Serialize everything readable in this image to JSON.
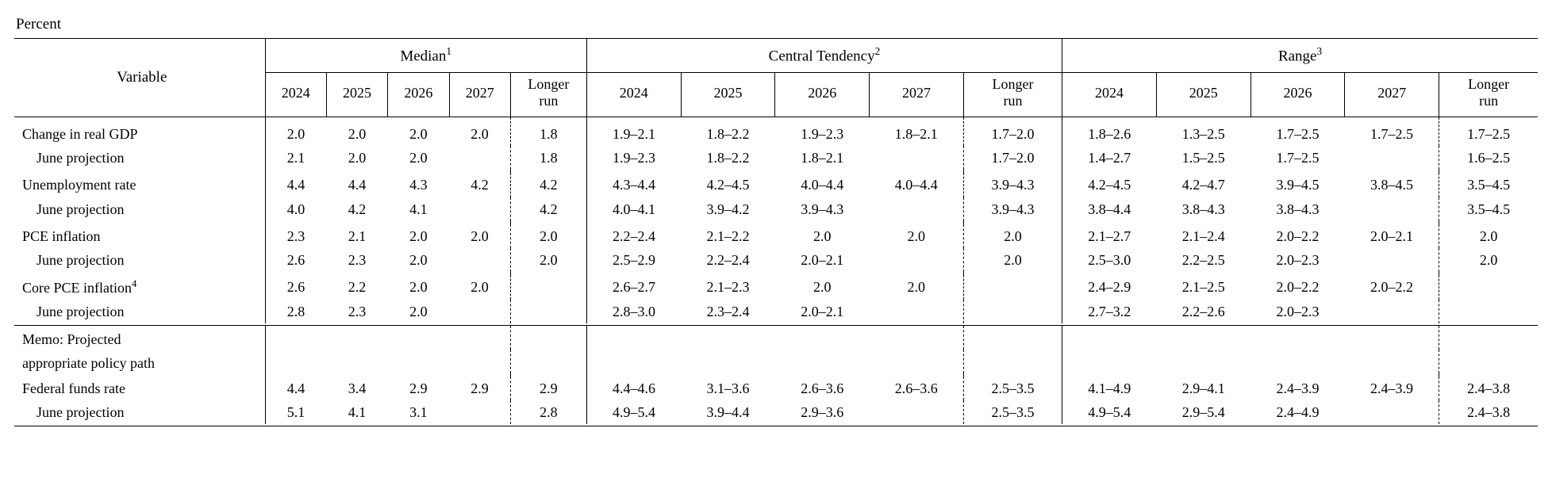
{
  "caption": "Percent",
  "header": {
    "variable": "Variable",
    "groups": [
      {
        "label": "Median",
        "sup": "1"
      },
      {
        "label": "Central Tendency",
        "sup": "2"
      },
      {
        "label": "Range",
        "sup": "3"
      }
    ],
    "years": [
      "2024",
      "2025",
      "2026",
      "2027"
    ],
    "longer_run": "Longer run"
  },
  "rows": {
    "gdp": {
      "label": "Change in real GDP",
      "median": [
        "2.0",
        "2.0",
        "2.0",
        "2.0",
        "1.8"
      ],
      "ct": [
        "1.9–2.1",
        "1.8–2.2",
        "1.9–2.3",
        "1.8–2.1",
        "1.7–2.0"
      ],
      "range": [
        "1.8–2.6",
        "1.3–2.5",
        "1.7–2.5",
        "1.7–2.5",
        "1.7–2.5"
      ]
    },
    "gdp_june": {
      "label": "June projection",
      "median": [
        "2.1",
        "2.0",
        "2.0",
        "",
        "1.8"
      ],
      "ct": [
        "1.9–2.3",
        "1.8–2.2",
        "1.8–2.1",
        "",
        "1.7–2.0"
      ],
      "range": [
        "1.4–2.7",
        "1.5–2.5",
        "1.7–2.5",
        "",
        "1.6–2.5"
      ]
    },
    "unemp": {
      "label": "Unemployment rate",
      "median": [
        "4.4",
        "4.4",
        "4.3",
        "4.2",
        "4.2"
      ],
      "ct": [
        "4.3–4.4",
        "4.2–4.5",
        "4.0–4.4",
        "4.0–4.4",
        "3.9–4.3"
      ],
      "range": [
        "4.2–4.5",
        "4.2–4.7",
        "3.9–4.5",
        "3.8–4.5",
        "3.5–4.5"
      ]
    },
    "unemp_june": {
      "label": "June projection",
      "median": [
        "4.0",
        "4.2",
        "4.1",
        "",
        "4.2"
      ],
      "ct": [
        "4.0–4.1",
        "3.9–4.2",
        "3.9–4.3",
        "",
        "3.9–4.3"
      ],
      "range": [
        "3.8–4.4",
        "3.8–4.3",
        "3.8–4.3",
        "",
        "3.5–4.5"
      ]
    },
    "pce": {
      "label": "PCE inflation",
      "median": [
        "2.3",
        "2.1",
        "2.0",
        "2.0",
        "2.0"
      ],
      "ct": [
        "2.2–2.4",
        "2.1–2.2",
        "2.0",
        "2.0",
        "2.0"
      ],
      "range": [
        "2.1–2.7",
        "2.1–2.4",
        "2.0–2.2",
        "2.0–2.1",
        "2.0"
      ]
    },
    "pce_june": {
      "label": "June projection",
      "median": [
        "2.6",
        "2.3",
        "2.0",
        "",
        "2.0"
      ],
      "ct": [
        "2.5–2.9",
        "2.2–2.4",
        "2.0–2.1",
        "",
        "2.0"
      ],
      "range": [
        "2.5–3.0",
        "2.2–2.5",
        "2.0–2.3",
        "",
        "2.0"
      ]
    },
    "core": {
      "label": "Core PCE inflation",
      "sup": "4",
      "median": [
        "2.6",
        "2.2",
        "2.0",
        "2.0",
        ""
      ],
      "ct": [
        "2.6–2.7",
        "2.1–2.3",
        "2.0",
        "2.0",
        ""
      ],
      "range": [
        "2.4–2.9",
        "2.1–2.5",
        "2.0–2.2",
        "2.0–2.2",
        ""
      ]
    },
    "core_june": {
      "label": "June projection",
      "median": [
        "2.8",
        "2.3",
        "2.0",
        "",
        ""
      ],
      "ct": [
        "2.8–3.0",
        "2.3–2.4",
        "2.0–2.1",
        "",
        ""
      ],
      "range": [
        "2.7–3.2",
        "2.2–2.6",
        "2.0–2.3",
        "",
        ""
      ]
    },
    "memo1": "Memo: Projected",
    "memo2": "appropriate policy path",
    "ffr": {
      "label": "Federal funds rate",
      "median": [
        "4.4",
        "3.4",
        "2.9",
        "2.9",
        "2.9"
      ],
      "ct": [
        "4.4–4.6",
        "3.1–3.6",
        "2.6–3.6",
        "2.6–3.6",
        "2.5–3.5"
      ],
      "range": [
        "4.1–4.9",
        "2.9–4.1",
        "2.4–3.9",
        "2.4–3.9",
        "2.4–3.8"
      ]
    },
    "ffr_june": {
      "label": "June projection",
      "median": [
        "5.1",
        "4.1",
        "3.1",
        "",
        "2.8"
      ],
      "ct": [
        "4.9–5.4",
        "3.9–4.4",
        "2.9–3.6",
        "",
        "2.5–3.5"
      ],
      "range": [
        "4.9–5.4",
        "2.9–5.4",
        "2.4–4.9",
        "",
        "2.4–3.8"
      ]
    }
  }
}
